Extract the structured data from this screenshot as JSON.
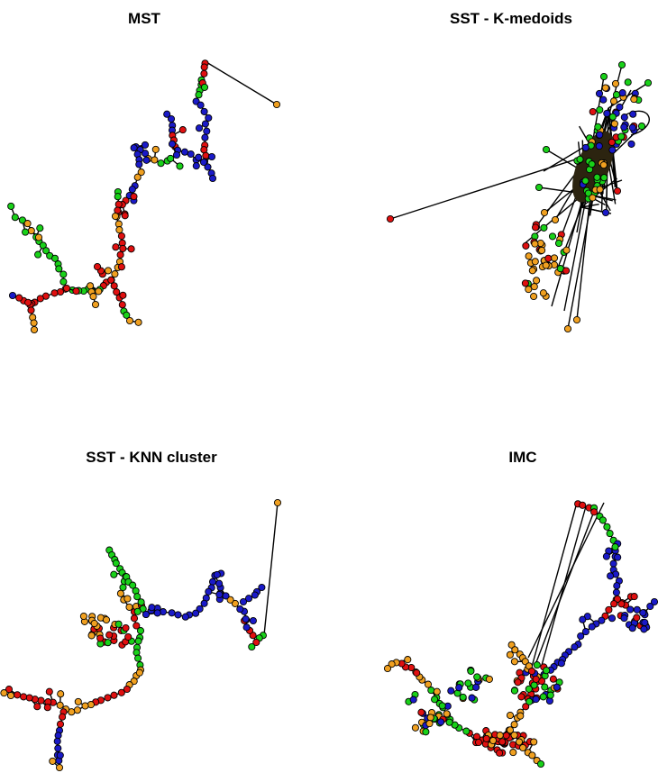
{
  "panels": [
    {
      "id": "mst",
      "title": "MST"
    },
    {
      "id": "sst-kmedoids",
      "title": "SST - K-medoids"
    },
    {
      "id": "sst-knn",
      "title": "SST - KNN cluster"
    },
    {
      "id": "imc",
      "title": "IMC"
    }
  ],
  "legend_colors": {
    "green": "#19d119",
    "blue": "#1a1ac8",
    "red": "#e01010",
    "orange": "#f0a020"
  }
}
